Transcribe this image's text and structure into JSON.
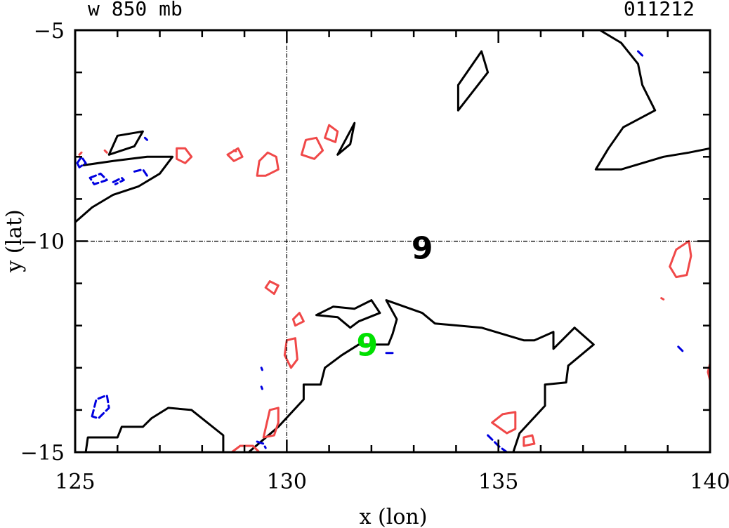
{
  "chart_data": {
    "type": "contour",
    "title_left": "w 850 mb",
    "title_right": "011212",
    "xlabel": "x (lon)",
    "ylabel": "y (lat)",
    "xlim": [
      125,
      140
    ],
    "ylim": [
      -15,
      -5
    ],
    "x_major_ticks": [
      125,
      130,
      135,
      140
    ],
    "y_major_ticks": [
      -15,
      -10,
      -5
    ],
    "x_minor_step": 1,
    "y_minor_step": 1,
    "reference_lines": {
      "x": 130,
      "y": -10
    },
    "colors": {
      "black": "#000000",
      "red": "#f04848",
      "blue": "#0000e0",
      "green": "#00e000"
    },
    "markers": [
      {
        "text": "9",
        "x": 133.2,
        "y": -10.15,
        "color": "#000000"
      },
      {
        "text": "9",
        "x": 131.9,
        "y": -12.45,
        "color": "#00e000"
      }
    ],
    "contours": [
      {
        "color": "#000000",
        "style": "solid",
        "points": [
          [
            125,
            -9.55
          ],
          [
            125.4,
            -9.2
          ],
          [
            125.9,
            -8.9
          ],
          [
            126.5,
            -8.7
          ],
          [
            127.0,
            -8.4
          ],
          [
            127.3,
            -8.0
          ],
          [
            126.7,
            -8.0
          ],
          [
            125.9,
            -8.1
          ],
          [
            125.2,
            -8.2
          ]
        ]
      },
      {
        "color": "#000000",
        "style": "solid",
        "points": [
          [
            125.8,
            -7.95
          ],
          [
            126.0,
            -7.5
          ],
          [
            126.6,
            -7.4
          ],
          [
            126.4,
            -7.75
          ],
          [
            125.8,
            -7.95
          ]
        ]
      },
      {
        "color": "#000000",
        "style": "solid",
        "points": [
          [
            131.2,
            -7.95
          ],
          [
            131.6,
            -7.2
          ],
          [
            131.5,
            -7.7
          ],
          [
            131.2,
            -7.95
          ]
        ]
      },
      {
        "color": "#000000",
        "style": "solid",
        "points": [
          [
            134.05,
            -6.9
          ],
          [
            134.05,
            -6.3
          ],
          [
            134.6,
            -5.5
          ],
          [
            134.75,
            -6.0
          ],
          [
            134.05,
            -6.9
          ]
        ]
      },
      {
        "color": "#000000",
        "style": "solid",
        "points": [
          [
            136.9,
            -5.0
          ],
          [
            137.4,
            -5.0
          ],
          [
            137.9,
            -5.3
          ],
          [
            138.3,
            -5.8
          ],
          [
            138.4,
            -6.3
          ],
          [
            138.7,
            -6.9
          ],
          [
            137.95,
            -7.3
          ],
          [
            137.6,
            -7.8
          ],
          [
            137.3,
            -8.3
          ],
          [
            137.9,
            -8.3
          ],
          [
            138.4,
            -8.15
          ],
          [
            138.9,
            -8.0
          ],
          [
            139.5,
            -7.9
          ],
          [
            140.0,
            -7.8
          ]
        ]
      },
      {
        "color": "#000000",
        "style": "solid",
        "points": [
          [
            125.25,
            -15.0
          ],
          [
            125.3,
            -14.65
          ],
          [
            126.0,
            -14.65
          ],
          [
            126.1,
            -14.4
          ],
          [
            126.6,
            -14.4
          ],
          [
            126.8,
            -14.2
          ],
          [
            127.2,
            -13.95
          ],
          [
            127.75,
            -14.0
          ],
          [
            128.5,
            -14.6
          ],
          [
            128.5,
            -15.0
          ]
        ]
      },
      {
        "color": "#000000",
        "style": "solid",
        "points": [
          [
            129.1,
            -15.0
          ],
          [
            129.8,
            -14.4
          ],
          [
            130.4,
            -13.75
          ],
          [
            130.4,
            -13.4
          ],
          [
            130.8,
            -13.4
          ],
          [
            130.9,
            -13.0
          ],
          [
            131.3,
            -12.7
          ],
          [
            131.7,
            -12.45
          ],
          [
            132.4,
            -12.45
          ],
          [
            132.5,
            -12.2
          ],
          [
            132.6,
            -11.85
          ],
          [
            132.35,
            -11.4
          ],
          [
            133.2,
            -11.7
          ],
          [
            133.5,
            -11.95
          ],
          [
            134.6,
            -12.05
          ],
          [
            135.6,
            -12.35
          ],
          [
            135.85,
            -12.35
          ],
          [
            136.3,
            -12.15
          ],
          [
            136.3,
            -12.55
          ],
          [
            136.8,
            -12.05
          ],
          [
            137.25,
            -12.45
          ],
          [
            136.65,
            -12.95
          ],
          [
            136.6,
            -13.35
          ],
          [
            136.1,
            -13.4
          ],
          [
            136.1,
            -13.9
          ],
          [
            135.5,
            -14.55
          ],
          [
            135.35,
            -15.0
          ]
        ]
      },
      {
        "color": "#000000",
        "style": "solid",
        "points": [
          [
            130.7,
            -11.75
          ],
          [
            131.1,
            -11.55
          ],
          [
            131.6,
            -11.6
          ],
          [
            132.0,
            -11.4
          ],
          [
            132.2,
            -11.7
          ],
          [
            131.7,
            -11.9
          ],
          [
            131.5,
            -12.05
          ],
          [
            131.2,
            -11.8
          ],
          [
            130.7,
            -11.75
          ]
        ]
      },
      {
        "color": "#f04848",
        "style": "solid",
        "points": [
          [
            127.4,
            -8.05
          ],
          [
            127.4,
            -7.8
          ],
          [
            127.6,
            -7.8
          ],
          [
            127.75,
            -8.0
          ],
          [
            127.6,
            -8.15
          ],
          [
            127.4,
            -8.05
          ]
        ]
      },
      {
        "color": "#f04848",
        "style": "solid",
        "points": [
          [
            128.6,
            -7.95
          ],
          [
            128.85,
            -7.8
          ],
          [
            128.95,
            -8.0
          ],
          [
            128.75,
            -8.1
          ],
          [
            128.6,
            -7.95
          ]
        ]
      },
      {
        "color": "#f04848",
        "style": "solid",
        "points": [
          [
            129.3,
            -8.45
          ],
          [
            129.35,
            -8.1
          ],
          [
            129.55,
            -7.9
          ],
          [
            129.75,
            -8.0
          ],
          [
            129.8,
            -8.3
          ],
          [
            129.5,
            -8.45
          ],
          [
            129.3,
            -8.45
          ]
        ]
      },
      {
        "color": "#f04848",
        "style": "solid",
        "points": [
          [
            130.35,
            -7.95
          ],
          [
            130.45,
            -7.6
          ],
          [
            130.7,
            -7.55
          ],
          [
            130.85,
            -7.85
          ],
          [
            130.65,
            -8.05
          ],
          [
            130.35,
            -7.95
          ]
        ]
      },
      {
        "color": "#f04848",
        "style": "solid",
        "points": [
          [
            130.9,
            -7.55
          ],
          [
            131.0,
            -7.25
          ],
          [
            131.2,
            -7.4
          ],
          [
            131.15,
            -7.65
          ],
          [
            130.9,
            -7.55
          ]
        ]
      },
      {
        "color": "#f04848",
        "style": "solid",
        "points": [
          [
            129.5,
            -11.1
          ],
          [
            129.6,
            -10.95
          ],
          [
            129.8,
            -11.05
          ],
          [
            129.7,
            -11.25
          ],
          [
            129.5,
            -11.1
          ]
        ]
      },
      {
        "color": "#f04848",
        "style": "solid",
        "points": [
          [
            130.15,
            -11.85
          ],
          [
            130.3,
            -11.7
          ],
          [
            130.4,
            -11.9
          ],
          [
            130.2,
            -12.0
          ],
          [
            130.15,
            -11.85
          ]
        ]
      },
      {
        "color": "#f04848",
        "style": "solid",
        "points": [
          [
            129.95,
            -12.7
          ],
          [
            130.0,
            -12.35
          ],
          [
            130.2,
            -12.3
          ],
          [
            130.25,
            -12.8
          ],
          [
            130.1,
            -13.0
          ],
          [
            129.95,
            -12.7
          ]
        ]
      },
      {
        "color": "#f04848",
        "style": "solid",
        "points": [
          [
            129.45,
            -14.65
          ],
          [
            129.6,
            -14.0
          ],
          [
            129.8,
            -13.95
          ],
          [
            129.8,
            -14.3
          ],
          [
            129.7,
            -14.6
          ],
          [
            129.45,
            -14.65
          ]
        ]
      },
      {
        "color": "#f04848",
        "style": "solid",
        "points": [
          [
            128.7,
            -15.0
          ],
          [
            128.9,
            -14.85
          ],
          [
            129.2,
            -14.85
          ],
          [
            129.35,
            -15.0
          ]
        ]
      },
      {
        "color": "#f04848",
        "style": "solid",
        "points": [
          [
            134.85,
            -14.3
          ],
          [
            135.1,
            -14.1
          ],
          [
            135.4,
            -14.05
          ],
          [
            135.4,
            -14.45
          ],
          [
            135.2,
            -14.55
          ],
          [
            134.85,
            -14.3
          ]
        ]
      },
      {
        "color": "#f04848",
        "style": "solid",
        "points": [
          [
            135.6,
            -14.65
          ],
          [
            135.8,
            -14.6
          ],
          [
            135.85,
            -14.8
          ],
          [
            135.6,
            -14.85
          ],
          [
            135.6,
            -14.65
          ]
        ]
      },
      {
        "color": "#f04848",
        "style": "solid",
        "points": [
          [
            139.05,
            -10.6
          ],
          [
            139.2,
            -10.2
          ],
          [
            139.5,
            -10.0
          ],
          [
            139.55,
            -10.35
          ],
          [
            139.45,
            -10.8
          ],
          [
            139.2,
            -10.85
          ],
          [
            139.05,
            -10.6
          ]
        ]
      },
      {
        "color": "#f04848",
        "style": "solid",
        "points": [
          [
            140.0,
            -12.9
          ],
          [
            139.95,
            -13.1
          ],
          [
            140.0,
            -13.3
          ]
        ]
      },
      {
        "color": "#f04848",
        "style": "solid",
        "points": [
          [
            125.1,
            -7.95
          ],
          [
            125.15,
            -7.9
          ]
        ]
      },
      {
        "color": "#f04848",
        "style": "solid",
        "points": [
          [
            125.7,
            -7.85
          ],
          [
            125.75,
            -7.9
          ]
        ]
      },
      {
        "color": "#f04848",
        "style": "solid",
        "points": [
          [
            128.75,
            -7.85
          ],
          [
            128.8,
            -7.87
          ]
        ]
      },
      {
        "color": "#f04848",
        "style": "solid",
        "points": [
          [
            138.85,
            -11.35
          ],
          [
            138.9,
            -11.38
          ]
        ]
      },
      {
        "color": "#0000e0",
        "style": "dashed",
        "points": [
          [
            125.05,
            -8.15
          ],
          [
            125.15,
            -8.0
          ],
          [
            125.25,
            -8.15
          ],
          [
            125.1,
            -8.25
          ],
          [
            125.05,
            -8.15
          ]
        ]
      },
      {
        "color": "#0000e0",
        "style": "dashed",
        "points": [
          [
            125.35,
            -8.5
          ],
          [
            125.6,
            -8.4
          ],
          [
            125.75,
            -8.55
          ],
          [
            125.45,
            -8.65
          ],
          [
            125.35,
            -8.5
          ]
        ]
      },
      {
        "color": "#0000e0",
        "style": "dashed",
        "points": [
          [
            125.9,
            -8.6
          ],
          [
            126.1,
            -8.5
          ],
          [
            126.15,
            -8.55
          ],
          [
            125.95,
            -8.65
          ]
        ]
      },
      {
        "color": "#0000e0",
        "style": "dashed",
        "points": [
          [
            126.4,
            -8.35
          ],
          [
            126.6,
            -8.3
          ],
          [
            126.7,
            -8.45
          ]
        ]
      },
      {
        "color": "#0000e0",
        "style": "dashed",
        "points": [
          [
            125.4,
            -14.15
          ],
          [
            125.5,
            -13.75
          ],
          [
            125.75,
            -13.65
          ],
          [
            125.8,
            -13.95
          ],
          [
            125.55,
            -14.2
          ],
          [
            125.4,
            -14.15
          ]
        ]
      },
      {
        "color": "#0000e0",
        "style": "dashed",
        "points": [
          [
            134.75,
            -14.6
          ],
          [
            135.0,
            -14.85
          ],
          [
            135.2,
            -15.0
          ]
        ]
      },
      {
        "color": "#0000e0",
        "style": "dashed",
        "points": [
          [
            129.3,
            -14.75
          ],
          [
            129.45,
            -14.8
          ],
          [
            129.5,
            -14.9
          ]
        ]
      },
      {
        "color": "#0000e0",
        "style": "dashed",
        "points": [
          [
            132.35,
            -12.65
          ],
          [
            132.55,
            -12.65
          ]
        ]
      },
      {
        "color": "#0000e0",
        "style": "dashed",
        "points": [
          [
            129.4,
            -13.0
          ],
          [
            129.42,
            -13.05
          ]
        ]
      },
      {
        "color": "#0000e0",
        "style": "dashed",
        "points": [
          [
            129.4,
            -13.45
          ],
          [
            129.42,
            -13.5
          ]
        ]
      },
      {
        "color": "#0000e0",
        "style": "dashed",
        "points": [
          [
            138.3,
            -5.5
          ],
          [
            138.4,
            -5.6
          ]
        ]
      },
      {
        "color": "#0000e0",
        "style": "dashed",
        "points": [
          [
            139.25,
            -12.5
          ],
          [
            139.35,
            -12.6
          ]
        ]
      },
      {
        "color": "#0000e0",
        "style": "dashed",
        "points": [
          [
            126.65,
            -7.55
          ],
          [
            126.7,
            -7.6
          ]
        ]
      }
    ]
  }
}
